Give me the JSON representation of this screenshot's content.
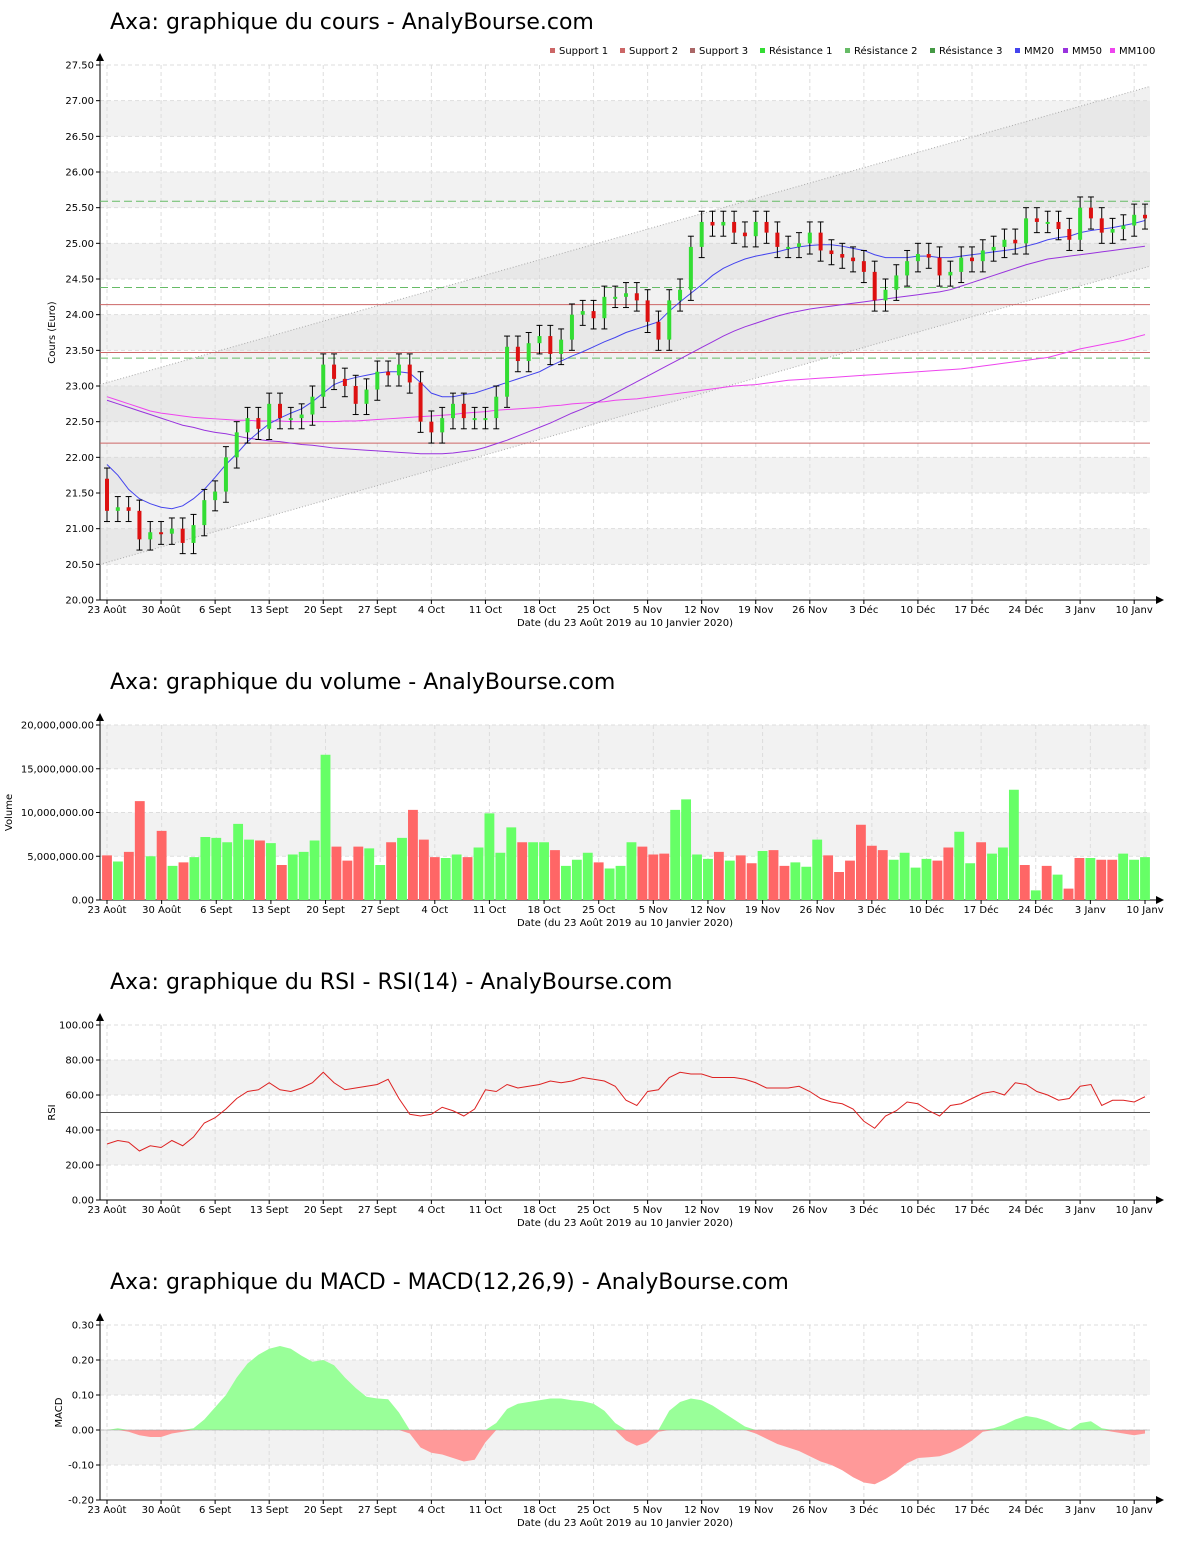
{
  "charts": {
    "price": {
      "title": "Axa: graphique du cours - AnalyBourse.com"
    },
    "volume": {
      "title": "Axa: graphique du volume - AnalyBourse.com"
    },
    "rsi": {
      "title": "Axa: graphique du RSI - RSI(14) - AnalyBourse.com"
    },
    "macd": {
      "title": "Axa: graphique du MACD - MACD(12,26,9) - AnalyBourse.com"
    }
  },
  "chart_data": [
    {
      "type": "candlestick",
      "title": "Axa: graphique du cours - AnalyBourse.com",
      "xlabel": "Date (du 23 Août 2019 au 10 Janvier 2020)",
      "ylabel": "Cours (Euro)",
      "ylim": [
        20.0,
        27.5
      ],
      "yticks": [
        "20.00",
        "20.50",
        "21.00",
        "21.50",
        "22.00",
        "22.50",
        "23.00",
        "23.50",
        "24.00",
        "24.50",
        "25.00",
        "25.50",
        "26.00",
        "26.50",
        "27.00",
        "27.50"
      ],
      "xticks": [
        "23 Août",
        "30 Août",
        "6 Sept",
        "13 Sept",
        "20 Sept",
        "27 Sept",
        "4 Oct",
        "11 Oct",
        "18 Oct",
        "25 Oct",
        "5 Nov",
        "12 Nov",
        "19 Nov",
        "26 Nov",
        "3 Déc",
        "10 Déc",
        "17 Déc",
        "24 Déc",
        "3 Janv",
        "10 Janv"
      ],
      "xtick_index": [
        0,
        5,
        10,
        15,
        20,
        25,
        30,
        35,
        40,
        45,
        50,
        55,
        60,
        65,
        70,
        75,
        80,
        85,
        90,
        95
      ],
      "legend": [
        "Support 1",
        "Support 2",
        "Support 3",
        "Résistance 1",
        "Résistance 2",
        "Résistance 3",
        "MM20",
        "MM50",
        "MM100"
      ],
      "legend_position": "top-right",
      "colors": {
        "up": "#33dd33",
        "down": "#dd1111",
        "support": "#cc6666",
        "resistance": "#66bb66",
        "mm20": "#4444ee",
        "mm50": "#9933dd",
        "mm100": "#ee44ee"
      },
      "support_levels": [
        22.2,
        23.47,
        24.14
      ],
      "resistance_levels": [
        23.39,
        24.38,
        25.59
      ],
      "trend_channel": {
        "upper": [
          23.02,
          27.2
        ],
        "lower": [
          20.5,
          24.68
        ]
      },
      "close": [
        21.25,
        21.3,
        21.25,
        20.85,
        20.95,
        20.93,
        21.0,
        20.8,
        21.05,
        21.4,
        21.52,
        22.0,
        22.35,
        22.55,
        22.4,
        22.75,
        22.55,
        22.55,
        22.6,
        22.85,
        23.3,
        23.1,
        23.0,
        22.75,
        22.95,
        23.2,
        23.15,
        23.3,
        23.05,
        22.5,
        22.35,
        22.55,
        22.75,
        22.55,
        22.55,
        22.55,
        22.85,
        23.55,
        23.35,
        23.6,
        23.7,
        23.45,
        23.65,
        24.0,
        24.05,
        23.95,
        24.25,
        24.25,
        24.3,
        24.2,
        23.9,
        23.65,
        24.2,
        24.35,
        24.95,
        25.3,
        25.25,
        25.3,
        25.15,
        25.1,
        25.3,
        25.15,
        24.95,
        24.95,
        25.0,
        25.15,
        24.9,
        24.85,
        24.8,
        24.75,
        24.6,
        24.2,
        24.35,
        24.55,
        24.75,
        24.85,
        24.8,
        24.55,
        24.6,
        24.8,
        24.75,
        24.9,
        24.95,
        25.05,
        25.0,
        25.35,
        25.3,
        25.3,
        25.2,
        25.05,
        25.5,
        25.35,
        25.15,
        25.2,
        25.25,
        25.4,
        25.35
      ],
      "mm20": [
        21.9,
        21.75,
        21.55,
        21.42,
        21.35,
        21.3,
        21.28,
        21.32,
        21.42,
        21.55,
        21.72,
        21.9,
        22.05,
        22.22,
        22.35,
        22.47,
        22.55,
        22.62,
        22.68,
        22.78,
        22.9,
        23.02,
        23.08,
        23.12,
        23.15,
        23.18,
        23.2,
        23.2,
        23.18,
        23.05,
        22.9,
        22.85,
        22.85,
        22.88,
        22.9,
        22.95,
        23.0,
        23.05,
        23.1,
        23.15,
        23.2,
        23.28,
        23.35,
        23.42,
        23.48,
        23.55,
        23.62,
        23.68,
        23.75,
        23.8,
        23.85,
        23.9,
        24.05,
        24.18,
        24.3,
        24.42,
        24.55,
        24.65,
        24.72,
        24.78,
        24.82,
        24.85,
        24.88,
        24.92,
        24.95,
        24.97,
        24.98,
        24.98,
        24.96,
        24.93,
        24.9,
        24.84,
        24.8,
        24.8,
        24.8,
        24.82,
        24.82,
        24.8,
        24.8,
        24.82,
        24.84,
        24.86,
        24.88,
        24.9,
        24.92,
        24.96,
        25.0,
        25.05,
        25.08,
        25.1,
        25.15,
        25.18,
        25.2,
        25.22,
        25.25,
        25.28,
        25.32
      ],
      "mm50": [
        22.8,
        22.75,
        22.7,
        22.65,
        22.6,
        22.55,
        22.5,
        22.45,
        22.42,
        22.38,
        22.35,
        22.33,
        22.3,
        22.27,
        22.25,
        22.23,
        22.22,
        22.2,
        22.18,
        22.17,
        22.15,
        22.13,
        22.12,
        22.11,
        22.1,
        22.09,
        22.08,
        22.07,
        22.06,
        22.05,
        22.05,
        22.05,
        22.06,
        22.08,
        22.1,
        22.14,
        22.19,
        22.24,
        22.3,
        22.36,
        22.42,
        22.48,
        22.55,
        22.62,
        22.68,
        22.75,
        22.82,
        22.9,
        22.98,
        23.06,
        23.14,
        23.22,
        23.3,
        23.38,
        23.46,
        23.54,
        23.62,
        23.7,
        23.77,
        23.83,
        23.88,
        23.93,
        23.98,
        24.02,
        24.05,
        24.08,
        24.1,
        24.12,
        24.14,
        24.16,
        24.18,
        24.2,
        24.22,
        24.24,
        24.26,
        24.28,
        24.3,
        24.32,
        24.35,
        24.4,
        24.45,
        24.5,
        24.55,
        24.6,
        24.65,
        24.7,
        24.74,
        24.78,
        24.8,
        24.82,
        24.84,
        24.86,
        24.88,
        24.9,
        24.92,
        24.94,
        24.96
      ],
      "mm100": [
        22.85,
        22.8,
        22.75,
        22.7,
        22.65,
        22.62,
        22.6,
        22.58,
        22.56,
        22.55,
        22.54,
        22.53,
        22.52,
        22.52,
        22.51,
        22.51,
        22.51,
        22.5,
        22.5,
        22.5,
        22.5,
        22.5,
        22.51,
        22.51,
        22.52,
        22.53,
        22.54,
        22.55,
        22.56,
        22.57,
        22.58,
        22.59,
        22.6,
        22.62,
        22.63,
        22.64,
        22.66,
        22.67,
        22.68,
        22.69,
        22.7,
        22.72,
        22.73,
        22.75,
        22.76,
        22.77,
        22.78,
        22.8,
        22.81,
        22.82,
        22.84,
        22.86,
        22.88,
        22.9,
        22.92,
        22.94,
        22.96,
        22.98,
        23.0,
        23.01,
        23.02,
        23.04,
        23.06,
        23.08,
        23.09,
        23.1,
        23.11,
        23.12,
        23.13,
        23.14,
        23.15,
        23.16,
        23.17,
        23.18,
        23.19,
        23.2,
        23.21,
        23.22,
        23.23,
        23.24,
        23.26,
        23.28,
        23.3,
        23.32,
        23.34,
        23.36,
        23.38,
        23.4,
        23.44,
        23.48,
        23.52,
        23.55,
        23.58,
        23.61,
        23.64,
        23.68,
        23.72
      ]
    },
    {
      "type": "bar",
      "title": "Axa: graphique du volume - AnalyBourse.com",
      "xlabel": "Date (du 23 Août 2019 au 10 Janvier 2020)",
      "ylabel": "Volume",
      "ylim": [
        0,
        20000000
      ],
      "yticks": [
        "0.00",
        "5,000,000.00",
        "10,000,000.00",
        "15,000,000.00",
        "20,000,000.00"
      ],
      "xticks": [
        "23 Août",
        "30 Août",
        "6 Sept",
        "13 Sept",
        "20 Sept",
        "27 Sept",
        "4 Oct",
        "11 Oct",
        "18 Oct",
        "25 Oct",
        "5 Nov",
        "12 Nov",
        "19 Nov",
        "26 Nov",
        "3 Déc",
        "10 Déc",
        "17 Déc",
        "24 Déc",
        "3 Janv",
        "10 Janv"
      ],
      "xtick_index": [
        0,
        5,
        10,
        15,
        20,
        25,
        30,
        35,
        40,
        45,
        50,
        55,
        60,
        65,
        70,
        75,
        80,
        85,
        90,
        95
      ],
      "values": [
        5100000,
        4400000,
        5500000,
        11300000,
        5000000,
        7900000,
        3900000,
        4300000,
        4900000,
        7200000,
        7100000,
        6600000,
        8700000,
        6900000,
        6800000,
        6500000,
        4000000,
        5200000,
        5500000,
        6800000,
        16600000,
        6100000,
        4500000,
        6100000,
        5900000,
        4000000,
        6600000,
        7100000,
        10300000,
        6900000,
        4900000,
        4800000,
        5200000,
        4900000,
        6000000,
        9900000,
        5400000,
        8300000,
        6600000,
        6600000,
        6600000,
        5700000,
        3900000,
        4600000,
        5400000,
        4300000,
        3600000,
        3900000,
        6600000,
        6100000,
        5200000,
        5300000,
        10300000,
        11500000,
        5200000,
        4700000,
        5500000,
        4500000,
        5100000,
        4200000,
        5600000,
        5700000,
        3900000,
        4300000,
        3800000,
        6900000,
        5100000,
        3200000,
        4500000,
        8600000,
        6200000,
        5700000,
        4600000,
        5400000,
        3700000,
        4700000,
        4500000,
        6000000,
        7800000,
        4200000,
        6600000,
        5300000,
        6000000,
        12600000,
        4000000,
        1100000,
        3900000,
        2900000,
        1300000,
        4800000,
        4800000,
        4600000,
        4600000,
        5300000,
        4600000,
        4900000
      ],
      "colors": [
        "#ff6666",
        "#66ff66"
      ]
    },
    {
      "type": "line",
      "title": "Axa: graphique du RSI - RSI(14) - AnalyBourse.com",
      "xlabel": "Date (du 23 Août 2019 au 10 Janvier 2020)",
      "ylabel": "RSI",
      "ylim": [
        0,
        100
      ],
      "yticks": [
        "0.00",
        "20.00",
        "40.00",
        "60.00",
        "80.00",
        "100.00"
      ],
      "xticks": [
        "23 Août",
        "30 Août",
        "6 Sept",
        "13 Sept",
        "20 Sept",
        "27 Sept",
        "4 Oct",
        "11 Oct",
        "18 Oct",
        "25 Oct",
        "5 Nov",
        "12 Nov",
        "19 Nov",
        "26 Nov",
        "3 Déc",
        "10 Déc",
        "17 Déc",
        "24 Déc",
        "3 Janv",
        "10 Janv"
      ],
      "xtick_index": [
        0,
        5,
        10,
        15,
        20,
        25,
        30,
        35,
        40,
        45,
        50,
        55,
        60,
        65,
        70,
        75,
        80,
        85,
        90,
        95
      ],
      "reference_line": 50,
      "values": [
        32,
        34,
        33,
        28,
        31,
        30,
        34,
        31,
        36,
        44,
        47,
        52,
        58,
        62,
        63,
        67,
        63,
        62,
        64,
        67,
        73,
        67,
        63,
        64,
        65,
        66,
        69,
        58,
        49,
        48,
        49,
        53,
        51,
        48,
        52,
        63,
        62,
        66,
        64,
        65,
        66,
        68,
        67,
        68,
        70,
        69,
        68,
        65,
        57,
        54,
        62,
        63,
        70,
        73,
        72,
        72,
        70,
        70,
        70,
        69,
        67,
        64,
        64,
        64,
        65,
        62,
        58,
        56,
        55,
        52,
        45,
        41,
        48,
        51,
        56,
        55,
        51,
        48,
        54,
        55,
        58,
        61,
        62,
        60,
        67,
        66,
        62,
        60,
        57,
        58,
        65,
        66,
        54,
        57,
        57,
        56,
        59
      ],
      "color": "#dd2222"
    },
    {
      "type": "area",
      "title": "Axa: graphique du MACD - MACD(12,26,9) - AnalyBourse.com",
      "xlabel": "Date (du 23 Août 2019 au 10 Janvier 2020)",
      "ylabel": "MACD",
      "ylim": [
        -0.2,
        0.3
      ],
      "yticks": [
        "-0.20",
        "-0.10",
        "0.00",
        "0.10",
        "0.20",
        "0.30"
      ],
      "xticks": [
        "23 Août",
        "30 Août",
        "6 Sept",
        "13 Sept",
        "20 Sept",
        "27 Sept",
        "4 Oct",
        "11 Oct",
        "18 Oct",
        "25 Oct",
        "5 Nov",
        "12 Nov",
        "19 Nov",
        "26 Nov",
        "3 Déc",
        "10 Déc",
        "17 Déc",
        "24 Déc",
        "3 Janv",
        "10 Janv"
      ],
      "xtick_index": [
        0,
        5,
        10,
        15,
        20,
        25,
        30,
        35,
        40,
        45,
        50,
        55,
        60,
        65,
        70,
        75,
        80,
        85,
        90,
        95
      ],
      "values": [
        0.0,
        0.005,
        -0.005,
        -0.015,
        -0.02,
        -0.02,
        -0.01,
        -0.005,
        0.005,
        0.03,
        0.065,
        0.1,
        0.15,
        0.19,
        0.215,
        0.232,
        0.24,
        0.232,
        0.212,
        0.195,
        0.2,
        0.185,
        0.15,
        0.12,
        0.095,
        0.09,
        0.088,
        0.05,
        -0.01,
        -0.05,
        -0.065,
        -0.07,
        -0.08,
        -0.09,
        -0.085,
        -0.035,
        0.02,
        0.06,
        0.075,
        0.08,
        0.085,
        0.09,
        0.09,
        0.085,
        0.082,
        0.075,
        0.055,
        0.02,
        -0.03,
        -0.045,
        -0.035,
        -0.005,
        0.055,
        0.08,
        0.09,
        0.085,
        0.07,
        0.05,
        0.03,
        0.01,
        -0.01,
        -0.025,
        -0.04,
        -0.05,
        -0.06,
        -0.075,
        -0.09,
        -0.1,
        -0.115,
        -0.135,
        -0.15,
        -0.155,
        -0.14,
        -0.12,
        -0.095,
        -0.08,
        -0.078,
        -0.075,
        -0.065,
        -0.05,
        -0.03,
        -0.005,
        0.005,
        0.015,
        0.03,
        0.04,
        0.035,
        0.025,
        0.01,
        0.0,
        0.02,
        0.025,
        0.005,
        -0.005,
        -0.01,
        -0.015,
        -0.01
      ],
      "colors": {
        "positive": "#99ff99",
        "negative": "#ff9999"
      }
    }
  ]
}
